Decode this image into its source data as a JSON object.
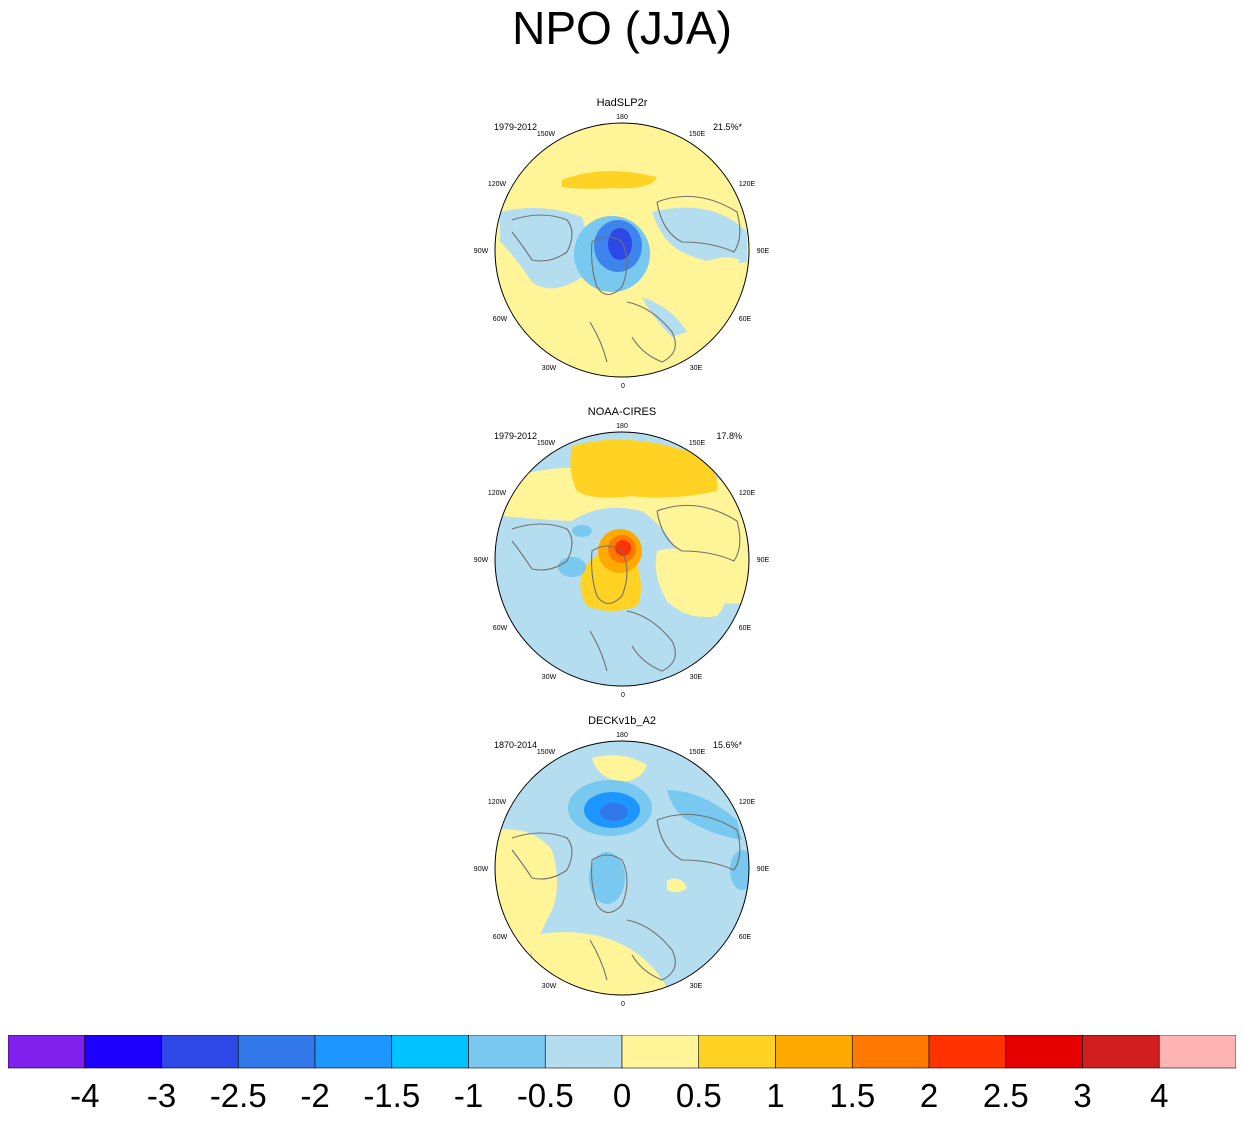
{
  "figure": {
    "title": "NPO (JJA)"
  },
  "panels": [
    {
      "dataset": "HadSLP2r",
      "period": "1979-2012",
      "variance": "21.5%*"
    },
    {
      "dataset": "NOAA-CIRES",
      "period": "1979-2012",
      "variance": "17.8%"
    },
    {
      "dataset": "DECKv1b_A2",
      "period": "1870-2014",
      "variance": "15.6%*"
    }
  ],
  "longitude_labels": [
    "180",
    "150E",
    "120E",
    "90E",
    "60E",
    "30E",
    "0",
    "30W",
    "60W",
    "90W",
    "120W",
    "150W"
  ],
  "colorbar": {
    "colors": [
      "#8220f0",
      "#1e00ff",
      "#2d48e6",
      "#3278eb",
      "#1e96ff",
      "#00c3ff",
      "#78c8f0",
      "#b4def0",
      "#fff598",
      "#ffd223",
      "#ffaa00",
      "#ff7800",
      "#ff3200",
      "#e60000",
      "#d21e1e",
      "#ffb4b4"
    ],
    "labels": [
      "-4",
      "-3",
      "-2.5",
      "-2",
      "-1.5",
      "-1",
      "-0.5",
      "0",
      "0.5",
      "1",
      "1.5",
      "2",
      "2.5",
      "3",
      "4"
    ]
  },
  "chart_data": [
    {
      "type": "heatmap",
      "title": "HadSLP2r",
      "subtitle_left": "1979-2012",
      "subtitle_right": "21.5%*",
      "projection": "north polar stereographic",
      "season": "JJA",
      "contour_levels": [
        -4,
        -3,
        -2.5,
        -2,
        -1.5,
        -1,
        -0.5,
        0,
        0.5,
        1,
        1.5,
        2,
        2.5,
        3,
        4
      ],
      "value_range": [
        -2.5,
        1
      ],
      "centers": [
        {
          "lon": "120W-150W (Arctic Ocean)",
          "value": -2.2,
          "sign": "negative"
        },
        {
          "lon": "150W-180 (North Pacific)",
          "value": 0.7,
          "sign": "positive"
        }
      ]
    },
    {
      "type": "heatmap",
      "title": "NOAA-CIRES",
      "subtitle_left": "1979-2012",
      "subtitle_right": "17.8%",
      "projection": "north polar stereographic",
      "season": "JJA",
      "contour_levels": [
        -4,
        -3,
        -2.5,
        -2,
        -1.5,
        -1,
        -0.5,
        0,
        0.5,
        1,
        1.5,
        2,
        2.5,
        3,
        4
      ],
      "value_range": [
        -1,
        2.5
      ],
      "centers": [
        {
          "lon": "near pole / Greenland",
          "value": 2.3,
          "sign": "positive"
        },
        {
          "lon": "150W-150E (North Pacific)",
          "value": 0.8,
          "sign": "positive"
        }
      ]
    },
    {
      "type": "heatmap",
      "title": "DECKv1b_A2",
      "subtitle_left": "1870-2014",
      "subtitle_right": "15.6%*",
      "projection": "north polar stereographic",
      "season": "JJA",
      "contour_levels": [
        -4,
        -3,
        -2.5,
        -2,
        -1.5,
        -1,
        -0.5,
        0,
        0.5,
        1,
        1.5,
        2,
        2.5,
        3,
        4
      ],
      "value_range": [
        -2,
        0.5
      ],
      "centers": [
        {
          "lon": "150E-180 (Bering / North Pacific)",
          "value": -1.9,
          "sign": "negative"
        },
        {
          "lon": "Atlantic / Eurasia",
          "value": 0.3,
          "sign": "positive"
        }
      ]
    }
  ]
}
